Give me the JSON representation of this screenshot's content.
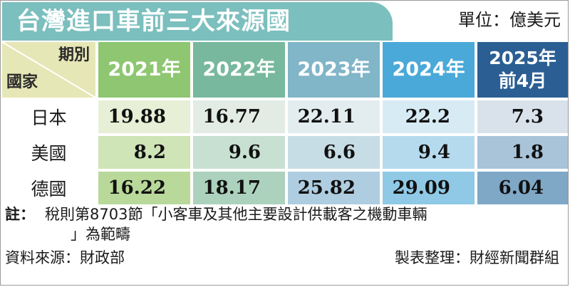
{
  "title": "台灣進口車前三大來源國",
  "unit": "單位：億美元",
  "table": {
    "corner_period": "期別",
    "corner_country": "國家",
    "columns": [
      "2021年",
      "2022年",
      "2023年",
      "2024年",
      "2025年\n前4月"
    ],
    "rows": [
      {
        "label": "日本",
        "values": [
          "19.88",
          "16.77",
          "22.11",
          "22.2",
          "7.3"
        ]
      },
      {
        "label": "美國",
        "values": [
          "8.2",
          "9.6",
          "6.6",
          "9.4",
          "1.8"
        ]
      },
      {
        "label": "德國",
        "values": [
          "16.22",
          "18.17",
          "25.82",
          "29.09",
          "6.04"
        ]
      }
    ]
  },
  "note": {
    "prefix": "註：",
    "line1": "稅則第8703節「小客車及其他主要設計供載客之機動車輛",
    "line2": "」為範疇"
  },
  "source": "資料來源：財政部",
  "credit": "製表整理：財經新聞群組",
  "colors": {
    "title_bg": "#7bbfbe",
    "corner_bg": "#e6e7b6",
    "head": [
      "#8ec671",
      "#77b89e",
      "#81b5c8",
      "#4aa9d8",
      "#2b5f93"
    ]
  }
}
